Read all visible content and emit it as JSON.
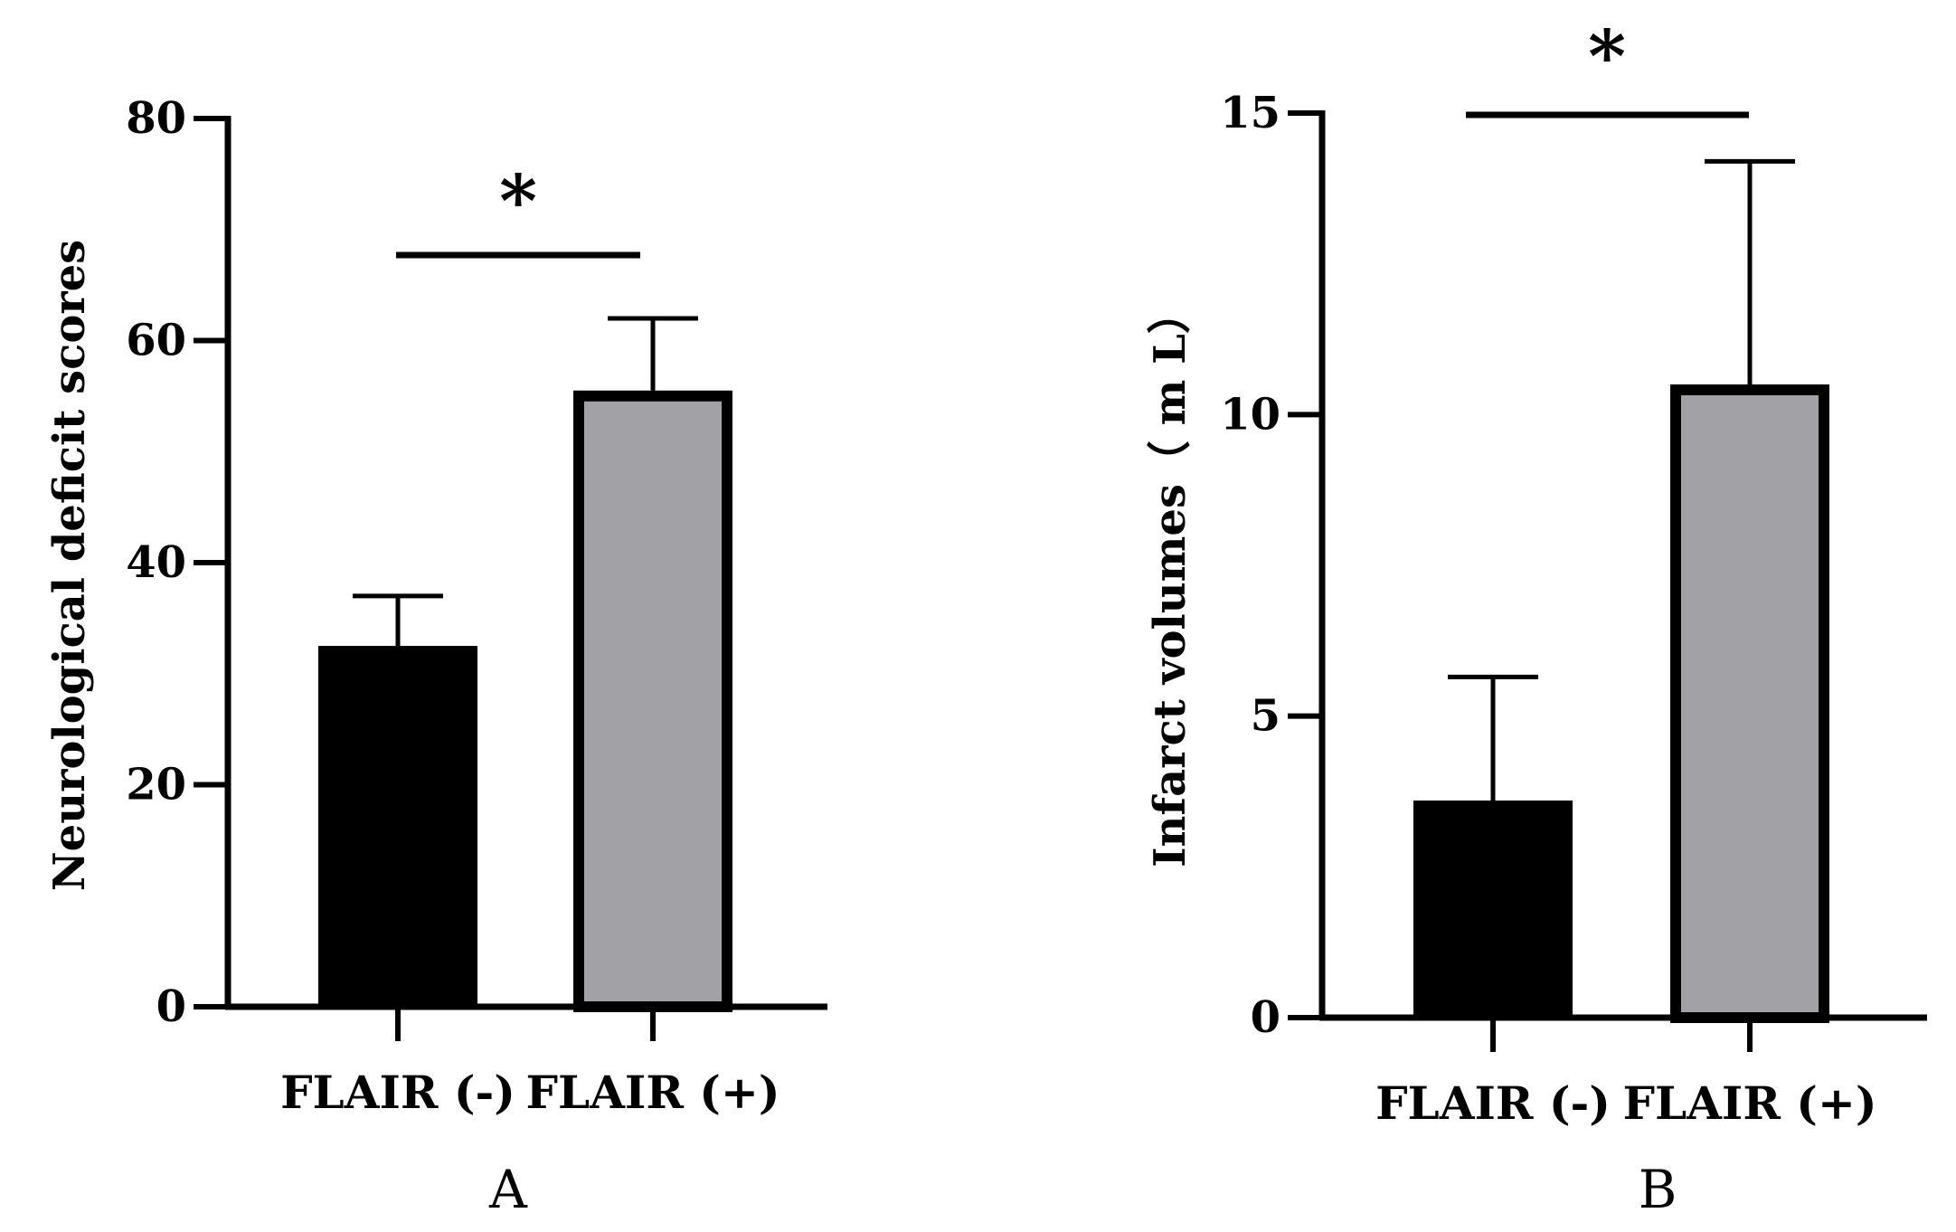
{
  "chart_data": [
    {
      "type": "bar",
      "panel": "A",
      "categories": [
        "FLAIR (-)",
        "FLAIR (+)"
      ],
      "values": [
        32.5,
        55.5
      ],
      "error_upper": [
        37,
        62
      ],
      "ylabel": "Neurological deficit scores",
      "ylim": [
        0,
        80
      ],
      "yticks": [
        "0",
        "20",
        "40",
        "60",
        "80"
      ],
      "significance": "*",
      "colors": [
        "#000000",
        "#a2a1a6"
      ],
      "grid": false
    },
    {
      "type": "bar",
      "panel": "B",
      "categories": [
        "FLAIR (-)",
        "FLAIR (+)"
      ],
      "values": [
        3.6,
        10.5
      ],
      "error_upper": [
        5.65,
        14.2
      ],
      "ylabel": "Infarct volumes（ m L）",
      "ylim": [
        0,
        15
      ],
      "yticks": [
        "0",
        "5",
        "10",
        "15"
      ],
      "significance": "*",
      "colors": [
        "#000000",
        "#a2a1a6"
      ],
      "grid": false
    }
  ]
}
